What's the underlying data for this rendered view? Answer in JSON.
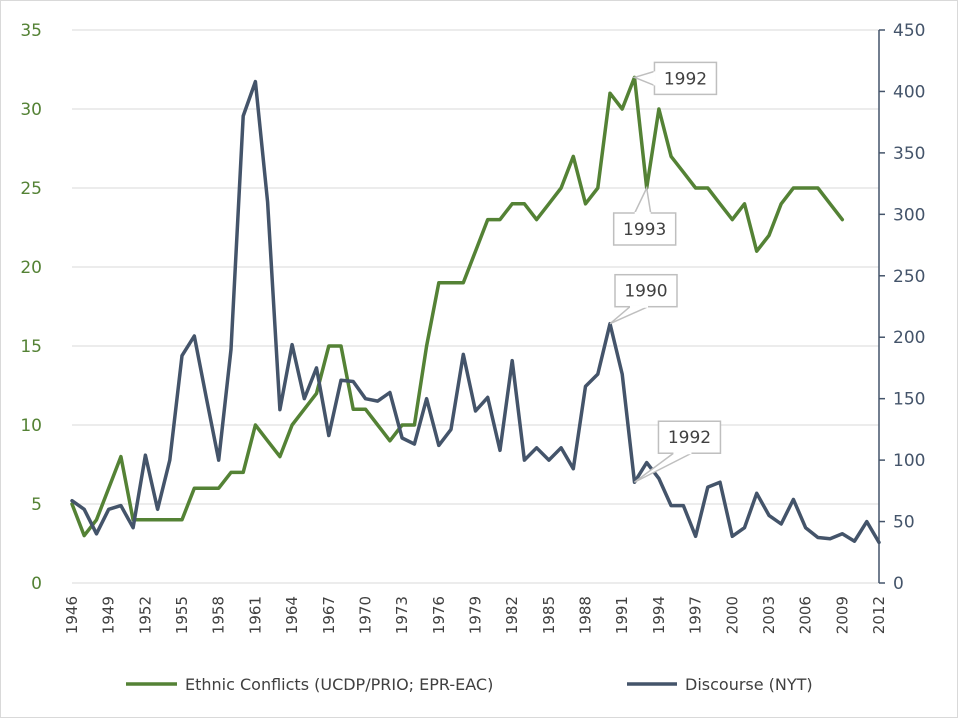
{
  "chart_data": {
    "type": "line",
    "title": "",
    "xlabel": "",
    "ylabel_left": "",
    "ylabel_right": "",
    "xlim": [
      1946,
      2012
    ],
    "ylim_left": [
      0,
      35
    ],
    "ylim_right": [
      0,
      450
    ],
    "yticks_left": [
      0,
      5,
      10,
      15,
      20,
      25,
      30,
      35
    ],
    "yticks_right": [
      0,
      50,
      100,
      150,
      200,
      250,
      300,
      350,
      400,
      450
    ],
    "xticks": [
      1946,
      1949,
      1952,
      1955,
      1958,
      1961,
      1964,
      1967,
      1970,
      1973,
      1976,
      1979,
      1982,
      1985,
      1988,
      1991,
      1994,
      1997,
      2000,
      2003,
      2006,
      2009,
      2012
    ],
    "grid": true,
    "legend_position": "bottom",
    "series": [
      {
        "name": "Ethnic Conflicts (UCDP/PRIO; EPR-EAC)",
        "axis": "left",
        "color": "#548235",
        "x": [
          1946,
          1947,
          1948,
          1949,
          1950,
          1951,
          1952,
          1953,
          1954,
          1955,
          1956,
          1957,
          1958,
          1959,
          1960,
          1961,
          1962,
          1963,
          1964,
          1965,
          1966,
          1967,
          1968,
          1969,
          1970,
          1971,
          1972,
          1973,
          1974,
          1975,
          1976,
          1977,
          1978,
          1979,
          1980,
          1981,
          1982,
          1983,
          1984,
          1985,
          1986,
          1987,
          1988,
          1989,
          1990,
          1991,
          1992,
          1993,
          1994,
          1995,
          1996,
          1997,
          1998,
          1999,
          2000,
          2001,
          2002,
          2003,
          2004,
          2005,
          2006,
          2007,
          2008,
          2009
        ],
        "values": [
          5,
          3,
          4,
          6,
          8,
          4,
          4,
          4,
          4,
          4,
          6,
          6,
          6,
          7,
          7,
          10,
          9,
          8,
          10,
          11,
          12,
          15,
          15,
          11,
          11,
          10,
          9,
          10,
          10,
          15,
          19,
          19,
          19,
          21,
          23,
          23,
          24,
          24,
          23,
          24,
          25,
          27,
          24,
          25,
          31,
          30,
          32,
          25,
          30,
          27,
          26,
          25,
          25,
          24,
          23,
          24,
          21,
          22,
          24,
          25,
          25,
          25,
          24,
          23
        ]
      },
      {
        "name": "Discourse (NYT)",
        "axis": "right",
        "color": "#44546a",
        "x": [
          1946,
          1947,
          1948,
          1949,
          1950,
          1951,
          1952,
          1953,
          1954,
          1955,
          1956,
          1957,
          1958,
          1959,
          1960,
          1961,
          1962,
          1963,
          1964,
          1965,
          1966,
          1967,
          1968,
          1969,
          1970,
          1971,
          1972,
          1973,
          1974,
          1975,
          1976,
          1977,
          1978,
          1979,
          1980,
          1981,
          1982,
          1983,
          1984,
          1985,
          1986,
          1987,
          1988,
          1989,
          1990,
          1991,
          1992,
          1993,
          1994,
          1995,
          1996,
          1997,
          1998,
          1999,
          2000,
          2001,
          2002,
          2003,
          2004,
          2005,
          2006,
          2007,
          2008,
          2009,
          2010,
          2011,
          2012
        ],
        "values": [
          67,
          60,
          40,
          60,
          63,
          45,
          104,
          60,
          100,
          185,
          201,
          150,
          100,
          190,
          380,
          408,
          310,
          141,
          194,
          150,
          175,
          120,
          165,
          164,
          150,
          148,
          155,
          118,
          113,
          150,
          112,
          125,
          186,
          140,
          151,
          108,
          181,
          100,
          110,
          100,
          110,
          93,
          160,
          170,
          211,
          170,
          82,
          98,
          85,
          63,
          63,
          38,
          78,
          82,
          38,
          45,
          73,
          55,
          48,
          68,
          45,
          37,
          36,
          40,
          34,
          50,
          33
        ]
      }
    ],
    "annotations": [
      {
        "label": "1992",
        "series": "Ethnic Conflicts (UCDP/PRIO; EPR-EAC)",
        "x": 1992,
        "y": 32
      },
      {
        "label": "1993",
        "series": "Ethnic Conflicts (UCDP/PRIO; EPR-EAC)",
        "x": 1993,
        "y": 25
      },
      {
        "label": "1990",
        "series": "Discourse (NYT)",
        "x": 1990,
        "y": 211
      },
      {
        "label": "1992",
        "series": "Discourse (NYT)",
        "x": 1992,
        "y": 82
      }
    ]
  }
}
